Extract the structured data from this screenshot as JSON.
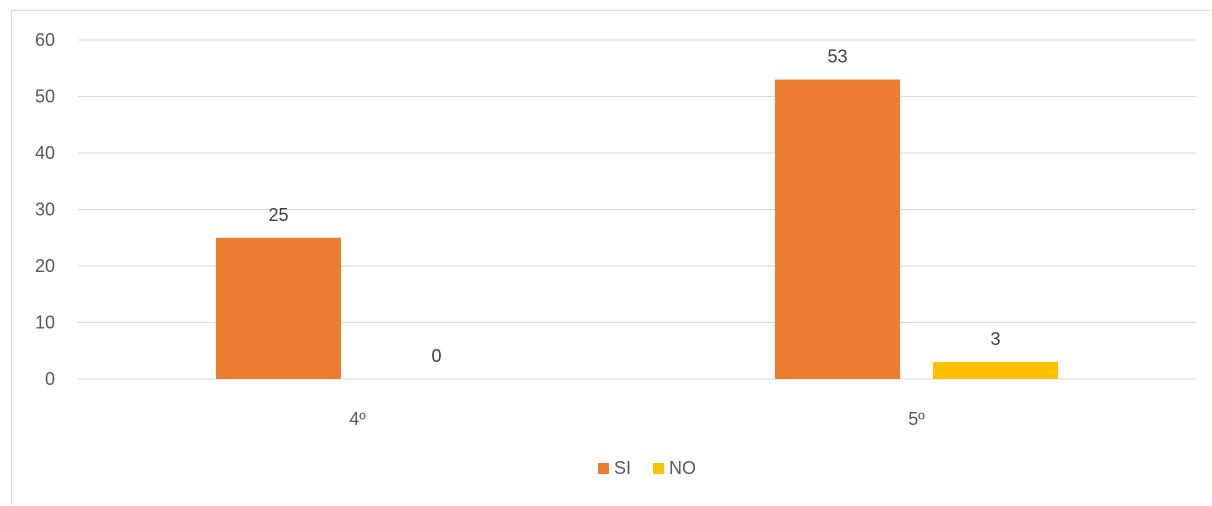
{
  "chart_data": {
    "type": "bar",
    "title": "",
    "xlabel": "",
    "ylabel": "",
    "categories": [
      "4º",
      "5º"
    ],
    "series": [
      {
        "name": "SI",
        "color": "#ED7D31",
        "values": [
          25,
          53
        ]
      },
      {
        "name": "NO",
        "color": "#FFC000",
        "values": [
          0,
          3
        ]
      }
    ],
    "ylim": [
      0,
      60
    ],
    "yticks": [
      0,
      10,
      20,
      30,
      40,
      50,
      60
    ],
    "data_labels": true,
    "grid": true,
    "legend_position": "bottom"
  }
}
